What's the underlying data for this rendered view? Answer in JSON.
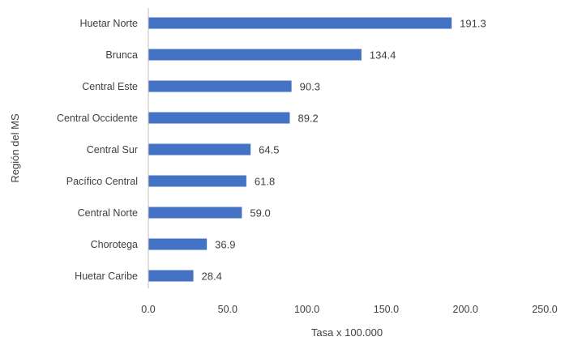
{
  "chart_data": {
    "type": "bar",
    "orientation": "horizontal",
    "categories": [
      "Huetar Norte",
      "Brunca",
      "Central Este",
      "Central Occidente",
      "Central Sur",
      "Pacífico Central",
      "Central Norte",
      "Chorotega",
      "Huetar Caribe"
    ],
    "values": [
      191.3,
      134.4,
      90.3,
      89.2,
      64.5,
      61.8,
      59.0,
      36.9,
      28.4
    ],
    "value_labels": [
      "191.3",
      "134.4",
      "90.3",
      "89.2",
      "64.5",
      "61.8",
      "59.0",
      "36.9",
      "28.4"
    ],
    "xlabel": "Tasa x 100.000",
    "ylabel": "Región del MS",
    "xlim": [
      0,
      250
    ],
    "xticks": [
      0,
      50,
      100,
      150,
      200,
      250
    ],
    "xtick_labels": [
      "0.0",
      "50.0",
      "100.0",
      "150.0",
      "200.0",
      "250.0"
    ],
    "grid": false,
    "bar_color": "#4472C4",
    "axis_color": "#bfbfbf",
    "text_color": "#404040"
  }
}
